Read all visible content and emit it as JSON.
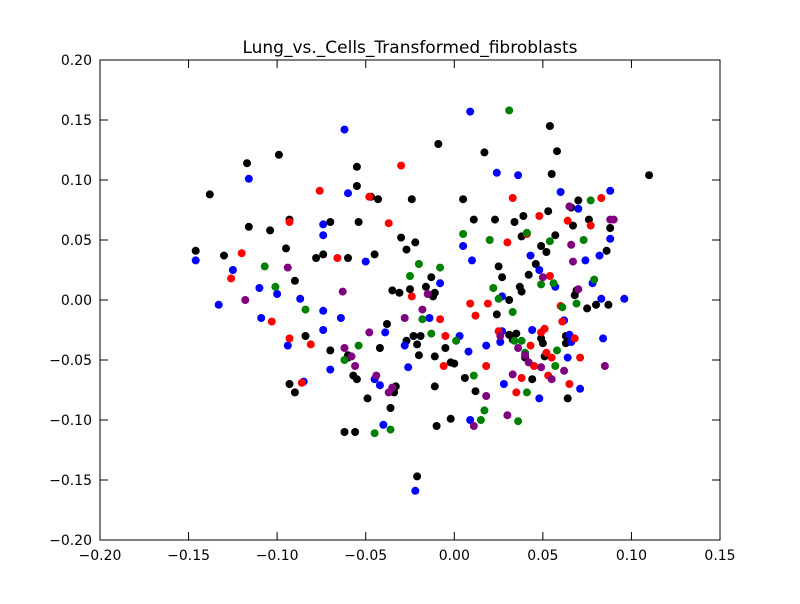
{
  "chart_data": {
    "type": "scatter",
    "title": "Lung_vs._Cells_Transformed_fibroblasts",
    "xlabel": "",
    "ylabel": "",
    "xlim": [
      -0.2,
      0.15
    ],
    "ylim": [
      -0.2,
      0.2
    ],
    "xticks": [
      -0.2,
      -0.15,
      -0.1,
      -0.05,
      0.0,
      0.05,
      0.1,
      0.15
    ],
    "xtick_labels": [
      "−0.20",
      "−0.15",
      "−0.10",
      "−0.05",
      "0.00",
      "0.05",
      "0.10",
      "0.15"
    ],
    "yticks": [
      -0.2,
      -0.15,
      -0.1,
      -0.05,
      0.0,
      0.05,
      0.1,
      0.15,
      0.2
    ],
    "ytick_labels": [
      "−0.20",
      "−0.15",
      "−0.10",
      "−0.05",
      "0.00",
      "0.05",
      "0.10",
      "0.15",
      "0.20"
    ],
    "grid": false,
    "legend": "none",
    "series": [
      {
        "color": "#000000",
        "points": [
          [
            -0.138,
            0.088
          ],
          [
            -0.146,
            0.041
          ],
          [
            -0.13,
            0.037
          ],
          [
            -0.117,
            0.114
          ],
          [
            -0.116,
            0.061
          ],
          [
            -0.099,
            0.121
          ],
          [
            -0.104,
            0.058
          ],
          [
            -0.093,
            0.067
          ],
          [
            -0.095,
            0.043
          ],
          [
            -0.09,
            0.016
          ],
          [
            -0.074,
            0.038
          ],
          [
            -0.078,
            0.035
          ],
          [
            -0.084,
            -0.03
          ],
          [
            -0.093,
            -0.07
          ],
          [
            -0.09,
            -0.077
          ],
          [
            -0.07,
            -0.042
          ],
          [
            -0.06,
            -0.048
          ],
          [
            -0.057,
            -0.063
          ],
          [
            -0.055,
            -0.066
          ],
          [
            -0.06,
            0.035
          ],
          [
            -0.055,
            0.111
          ],
          [
            -0.055,
            0.095
          ],
          [
            -0.047,
            0.086
          ],
          [
            -0.043,
            0.084
          ],
          [
            -0.054,
            0.065
          ],
          [
            -0.07,
            0.065
          ],
          [
            -0.056,
            -0.11
          ],
          [
            -0.062,
            -0.11
          ],
          [
            -0.049,
            -0.082
          ],
          [
            -0.042,
            -0.04
          ],
          [
            -0.038,
            -0.02
          ],
          [
            -0.045,
            0.038
          ],
          [
            -0.035,
            0.008
          ],
          [
            -0.031,
            0.006
          ],
          [
            -0.025,
            0.009
          ],
          [
            -0.027,
            0.042
          ],
          [
            -0.03,
            0.052
          ],
          [
            -0.024,
            0.084
          ],
          [
            -0.022,
            0.048
          ],
          [
            -0.016,
            0.011
          ],
          [
            -0.013,
            0.019
          ],
          [
            -0.011,
            0.006
          ],
          [
            -0.012,
            0.003
          ],
          [
            -0.023,
            -0.03
          ],
          [
            -0.027,
            -0.034
          ],
          [
            -0.019,
            -0.03
          ],
          [
            -0.036,
            -0.09
          ],
          [
            -0.034,
            -0.077
          ],
          [
            -0.033,
            -0.072
          ],
          [
            -0.021,
            -0.147
          ],
          [
            -0.021,
            -0.037
          ],
          [
            -0.02,
            -0.046
          ],
          [
            -0.011,
            -0.047
          ],
          [
            -0.009,
            0.13
          ],
          [
            -0.005,
            -0.04
          ],
          [
            -0.002,
            -0.052
          ],
          [
            0.0,
            -0.053
          ],
          [
            -0.011,
            -0.072
          ],
          [
            -0.01,
            -0.105
          ],
          [
            -0.002,
            -0.099
          ],
          [
            0.005,
            0.084
          ],
          [
            0.006,
            -0.065
          ],
          [
            0.011,
            0.067
          ],
          [
            0.012,
            -0.076
          ],
          [
            0.017,
            0.123
          ],
          [
            0.023,
            0.067
          ],
          [
            0.024,
            -0.012
          ],
          [
            0.025,
            0.028
          ],
          [
            0.027,
            0.019
          ],
          [
            0.031,
            0.0
          ],
          [
            0.031,
            -0.029
          ],
          [
            0.033,
            -0.033
          ],
          [
            0.034,
            0.065
          ],
          [
            0.035,
            -0.028
          ],
          [
            0.037,
            0.011
          ],
          [
            0.038,
            0.007
          ],
          [
            0.038,
            0.053
          ],
          [
            0.039,
            0.07
          ],
          [
            0.04,
            -0.048
          ],
          [
            0.042,
            0.021
          ],
          [
            0.044,
            -0.066
          ],
          [
            0.046,
            0.03
          ],
          [
            0.049,
            0.045
          ],
          [
            0.049,
            -0.032
          ],
          [
            0.05,
            -0.036
          ],
          [
            0.051,
            -0.047
          ],
          [
            0.052,
            0.04
          ],
          [
            0.053,
            0.074
          ],
          [
            0.054,
            0.145
          ],
          [
            0.055,
            0.105
          ],
          [
            0.057,
            0.054
          ],
          [
            0.058,
            0.124
          ],
          [
            0.063,
            -0.03
          ],
          [
            0.063,
            -0.036
          ],
          [
            0.064,
            -0.082
          ],
          [
            0.066,
            0.077
          ],
          [
            0.067,
            0.062
          ],
          [
            0.068,
            0.004
          ],
          [
            0.069,
            0.008
          ],
          [
            0.07,
            0.083
          ],
          [
            0.075,
            -0.007
          ],
          [
            0.076,
            0.067
          ],
          [
            0.08,
            -0.004
          ],
          [
            0.086,
            0.041
          ],
          [
            0.088,
            0.06
          ],
          [
            0.087,
            -0.004
          ],
          [
            0.11,
            0.104
          ],
          [
            -0.06,
            -0.046
          ]
        ]
      },
      {
        "color": "#0000ff",
        "points": [
          [
            -0.146,
            0.033
          ],
          [
            -0.133,
            -0.004
          ],
          [
            -0.125,
            0.025
          ],
          [
            -0.116,
            0.101
          ],
          [
            -0.11,
            0.01
          ],
          [
            -0.109,
            -0.015
          ],
          [
            -0.1,
            0.005
          ],
          [
            -0.094,
            -0.038
          ],
          [
            -0.087,
            0.001
          ],
          [
            -0.085,
            -0.068
          ],
          [
            -0.074,
            0.063
          ],
          [
            -0.074,
            0.054
          ],
          [
            -0.074,
            -0.025
          ],
          [
            -0.07,
            -0.058
          ],
          [
            -0.064,
            -0.015
          ],
          [
            -0.062,
            0.142
          ],
          [
            -0.06,
            0.089
          ],
          [
            -0.05,
            0.032
          ],
          [
            -0.045,
            -0.066
          ],
          [
            -0.042,
            -0.071
          ],
          [
            -0.039,
            -0.027
          ],
          [
            -0.04,
            -0.104
          ],
          [
            -0.028,
            -0.038
          ],
          [
            -0.026,
            -0.056
          ],
          [
            -0.022,
            -0.159
          ],
          [
            -0.014,
            -0.015
          ],
          [
            -0.008,
            0.014
          ],
          [
            0.003,
            -0.03
          ],
          [
            0.005,
            0.045
          ],
          [
            0.008,
            -0.043
          ],
          [
            0.009,
            0.157
          ],
          [
            0.01,
            0.033
          ],
          [
            0.009,
            -0.1
          ],
          [
            0.018,
            -0.038
          ],
          [
            0.024,
            0.106
          ],
          [
            0.027,
            0.003
          ],
          [
            0.027,
            -0.026
          ],
          [
            0.026,
            -0.035
          ],
          [
            0.028,
            -0.07
          ],
          [
            0.036,
            0.104
          ],
          [
            0.043,
            0.037
          ],
          [
            0.044,
            -0.025
          ],
          [
            0.048,
            0.025
          ],
          [
            0.048,
            -0.082
          ],
          [
            0.057,
            0.011
          ],
          [
            0.06,
            0.09
          ],
          [
            0.062,
            -0.017
          ],
          [
            0.065,
            -0.029
          ],
          [
            0.064,
            -0.048
          ],
          [
            0.066,
            -0.035
          ],
          [
            0.07,
            0.076
          ],
          [
            0.071,
            -0.074
          ],
          [
            0.074,
            0.033
          ],
          [
            0.078,
            0.014
          ],
          [
            0.082,
            0.037
          ],
          [
            0.083,
            0.001
          ],
          [
            0.084,
            -0.032
          ],
          [
            0.088,
            0.051
          ],
          [
            0.088,
            0.091
          ],
          [
            0.096,
            0.001
          ],
          [
            -0.074,
            -0.009
          ]
        ]
      },
      {
        "color": "#ff0000",
        "points": [
          [
            -0.126,
            0.018
          ],
          [
            -0.12,
            0.039
          ],
          [
            -0.103,
            -0.018
          ],
          [
            -0.093,
            0.065
          ],
          [
            -0.093,
            -0.032
          ],
          [
            -0.086,
            -0.069
          ],
          [
            -0.081,
            -0.037
          ],
          [
            -0.076,
            0.091
          ],
          [
            -0.066,
            0.035
          ],
          [
            -0.048,
            0.086
          ],
          [
            -0.037,
            0.064
          ],
          [
            -0.03,
            0.112
          ],
          [
            -0.024,
            0.003
          ],
          [
            -0.008,
            -0.016
          ],
          [
            -0.006,
            -0.055
          ],
          [
            -0.005,
            -0.03
          ],
          [
            0.009,
            -0.003
          ],
          [
            0.012,
            -0.013
          ],
          [
            0.018,
            -0.055
          ],
          [
            0.019,
            -0.003
          ],
          [
            0.025,
            -0.026
          ],
          [
            0.03,
            0.048
          ],
          [
            0.033,
            0.085
          ],
          [
            0.035,
            -0.077
          ],
          [
            0.038,
            -0.065
          ],
          [
            0.041,
            0.055
          ],
          [
            0.043,
            -0.038
          ],
          [
            0.045,
            -0.055
          ],
          [
            0.048,
            0.07
          ],
          [
            0.049,
            -0.027
          ],
          [
            0.051,
            -0.024
          ],
          [
            0.052,
            -0.044
          ],
          [
            0.053,
            -0.063
          ],
          [
            0.054,
            0.02
          ],
          [
            0.055,
            -0.048
          ],
          [
            0.06,
            -0.005
          ],
          [
            0.061,
            -0.018
          ],
          [
            0.064,
            0.066
          ],
          [
            0.065,
            -0.07
          ],
          [
            0.068,
            -0.032
          ],
          [
            0.071,
            -0.048
          ],
          [
            0.077,
            0.062
          ],
          [
            0.083,
            0.085
          ]
        ]
      },
      {
        "color": "#008000",
        "points": [
          [
            -0.107,
            0.028
          ],
          [
            -0.101,
            0.011
          ],
          [
            -0.084,
            -0.008
          ],
          [
            -0.062,
            -0.05
          ],
          [
            -0.045,
            -0.111
          ],
          [
            -0.036,
            -0.108
          ],
          [
            -0.025,
            0.02
          ],
          [
            -0.02,
            0.03
          ],
          [
            -0.018,
            -0.016
          ],
          [
            -0.013,
            -0.028
          ],
          [
            -0.008,
            0.027
          ],
          [
            0.005,
            0.055
          ],
          [
            0.011,
            -0.063
          ],
          [
            0.015,
            -0.1
          ],
          [
            0.017,
            -0.092
          ],
          [
            0.02,
            0.05
          ],
          [
            0.022,
            0.01
          ],
          [
            0.025,
            0.001
          ],
          [
            0.031,
            0.158
          ],
          [
            0.033,
            -0.01
          ],
          [
            0.034,
            -0.034
          ],
          [
            0.036,
            -0.101
          ],
          [
            0.038,
            -0.034
          ],
          [
            0.04,
            -0.044
          ],
          [
            0.041,
            -0.077
          ],
          [
            0.041,
            0.056
          ],
          [
            0.049,
            0.013
          ],
          [
            0.054,
            0.049
          ],
          [
            0.056,
            0.014
          ],
          [
            0.057,
            -0.055
          ],
          [
            0.058,
            -0.042
          ],
          [
            0.061,
            -0.006
          ],
          [
            0.069,
            -0.003
          ],
          [
            0.073,
            0.05
          ],
          [
            0.077,
            0.083
          ],
          [
            0.079,
            0.017
          ],
          [
            -0.054,
            -0.038
          ],
          [
            0.001,
            -0.034
          ]
        ]
      },
      {
        "color": "#800080",
        "points": [
          [
            -0.118,
            0.0
          ],
          [
            -0.094,
            0.027
          ],
          [
            -0.063,
            0.007
          ],
          [
            -0.062,
            -0.04
          ],
          [
            -0.058,
            -0.047
          ],
          [
            -0.056,
            -0.055
          ],
          [
            -0.048,
            -0.027
          ],
          [
            -0.037,
            -0.077
          ],
          [
            -0.035,
            -0.073
          ],
          [
            -0.044,
            -0.063
          ],
          [
            -0.028,
            -0.015
          ],
          [
            -0.018,
            -0.008
          ],
          [
            -0.015,
            0.005
          ],
          [
            0.011,
            -0.105
          ],
          [
            0.018,
            -0.08
          ],
          [
            0.026,
            -0.03
          ],
          [
            0.03,
            -0.096
          ],
          [
            0.033,
            -0.062
          ],
          [
            0.036,
            -0.04
          ],
          [
            0.04,
            -0.046
          ],
          [
            0.042,
            -0.052
          ],
          [
            0.049,
            -0.056
          ],
          [
            0.05,
            0.019
          ],
          [
            0.055,
            -0.066
          ],
          [
            0.062,
            -0.059
          ],
          [
            0.065,
            0.078
          ],
          [
            0.066,
            0.046
          ],
          [
            0.067,
            0.032
          ],
          [
            0.07,
            0.009
          ],
          [
            0.085,
            -0.055
          ],
          [
            0.088,
            0.067
          ],
          [
            0.09,
            0.067
          ]
        ]
      }
    ]
  }
}
